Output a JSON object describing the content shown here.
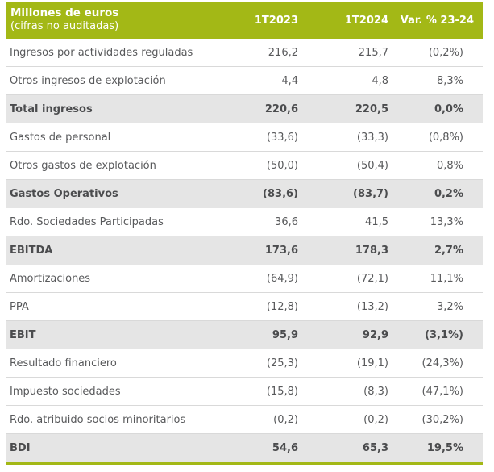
{
  "colors": {
    "accent_green": "#A3B816",
    "subtotal_bg": "#E5E5E5",
    "row_border": "#D9D9D9",
    "text": "#58595B",
    "text_bold": "#4B4C4E"
  },
  "header": {
    "title": "Millones de euros",
    "subtitle": "(cifras no auditadas)",
    "columns": [
      "1T2023",
      "1T2024",
      "Var. % 23-24"
    ]
  },
  "rows": [
    {
      "label": "Ingresos por actividades reguladas",
      "v2023": "216,2",
      "v2024": "215,7",
      "var": "(0,2%)",
      "subtotal": false
    },
    {
      "label": "Otros ingresos de explotación",
      "v2023": "4,4",
      "v2024": "4,8",
      "var": "8,3%",
      "subtotal": false
    },
    {
      "label": "Total ingresos",
      "v2023": "220,6",
      "v2024": "220,5",
      "var": "0,0%",
      "subtotal": true
    },
    {
      "label": "Gastos de personal",
      "v2023": "(33,6)",
      "v2024": "(33,3)",
      "var": "(0,8%)",
      "subtotal": false
    },
    {
      "label": "Otros gastos de explotación",
      "v2023": "(50,0)",
      "v2024": "(50,4)",
      "var": "0,8%",
      "subtotal": false
    },
    {
      "label": "Gastos Operativos",
      "v2023": "(83,6)",
      "v2024": "(83,7)",
      "var": "0,2%",
      "subtotal": true
    },
    {
      "label": "Rdo. Sociedades Participadas",
      "v2023": "36,6",
      "v2024": "41,5",
      "var": "13,3%",
      "subtotal": false
    },
    {
      "label": "EBITDA",
      "v2023": "173,6",
      "v2024": "178,3",
      "var": "2,7%",
      "subtotal": true
    },
    {
      "label": "Amortizaciones",
      "v2023": "(64,9)",
      "v2024": "(72,1)",
      "var": "11,1%",
      "subtotal": false
    },
    {
      "label": "PPA",
      "v2023": "(12,8)",
      "v2024": "(13,2)",
      "var": "3,2%",
      "subtotal": false
    },
    {
      "label": "EBIT",
      "v2023": "95,9",
      "v2024": "92,9",
      "var": "(3,1%)",
      "subtotal": true
    },
    {
      "label": "Resultado financiero",
      "v2023": "(25,3)",
      "v2024": "(19,1)",
      "var": "(24,3%)",
      "subtotal": false
    },
    {
      "label": "Impuesto sociedades",
      "v2023": "(15,8)",
      "v2024": "(8,3)",
      "var": "(47,1%)",
      "subtotal": false
    },
    {
      "label": "Rdo. atribuido socios minoritarios",
      "v2023": "(0,2)",
      "v2024": "(0,2)",
      "var": "(30,2%)",
      "subtotal": false
    },
    {
      "label": "BDI",
      "v2023": "54,6",
      "v2024": "65,3",
      "var": "19,5%",
      "subtotal": true
    }
  ]
}
